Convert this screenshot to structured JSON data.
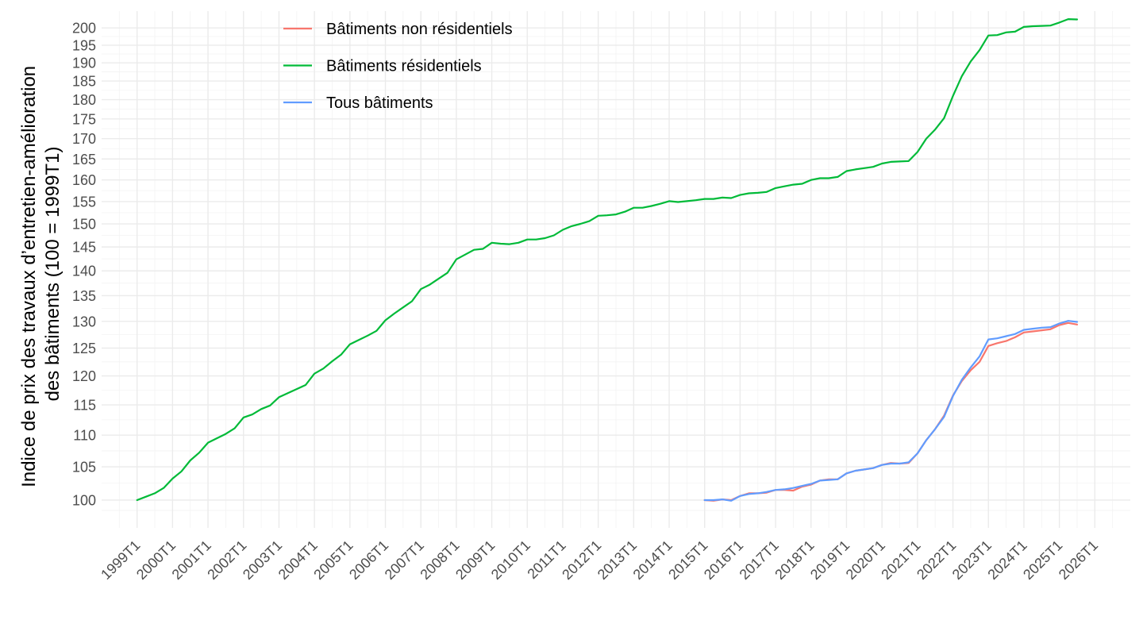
{
  "chart_data": {
    "type": "line",
    "ylabel_lines": [
      "Indice de prix des travaux d’entretien-amélioration",
      "des bâtiments (100 = 1999T1)"
    ],
    "xlabel": "",
    "y_scale": "log",
    "ylim": [
      96,
      205
    ],
    "y_ticks": [
      100,
      105,
      110,
      115,
      120,
      125,
      130,
      135,
      140,
      145,
      150,
      155,
      160,
      165,
      170,
      175,
      180,
      185,
      190,
      195,
      200
    ],
    "x_ticks": [
      "1999T1",
      "2000T1",
      "2001T1",
      "2002T1",
      "2003T1",
      "2004T1",
      "2005T1",
      "2006T1",
      "2007T1",
      "2008T1",
      "2009T1",
      "2010T1",
      "2011T1",
      "2012T1",
      "2013T1",
      "2014T1",
      "2015T1",
      "2016T1",
      "2017T1",
      "2018T1",
      "2019T1",
      "2020T1",
      "2021T1",
      "2022T1",
      "2023T1",
      "2024T1",
      "2025T1",
      "2026T1"
    ],
    "xlim": [
      "1998T1",
      "2027T1"
    ],
    "grid": true,
    "legend_position": "top-left",
    "series": [
      {
        "name": "Bâtiments non résidentiels",
        "color": "#F8766D",
        "start": "2015T1",
        "values": [
          100.0,
          99.9,
          100.1,
          100.0,
          100.6,
          101.0,
          101.0,
          101.1,
          101.5,
          101.5,
          101.4,
          102.0,
          102.3,
          102.9,
          103.1,
          103.1,
          104.0,
          104.4,
          104.6,
          104.8,
          105.3,
          105.6,
          105.5,
          105.6,
          107.1,
          109.2,
          111.0,
          113.2,
          116.6,
          119.1,
          121.0,
          122.5,
          125.4,
          125.9,
          126.3,
          127.0,
          127.9,
          128.1,
          128.3,
          128.5,
          129.3,
          129.7,
          129.4
        ]
      },
      {
        "name": "Bâtiments résidentiels",
        "color": "#00BA38",
        "start": "1999T1",
        "values": [
          100.0,
          100.5,
          101.0,
          101.8,
          103.2,
          104.3,
          106.0,
          107.2,
          108.8,
          109.5,
          110.2,
          111.1,
          112.9,
          113.4,
          114.3,
          114.9,
          116.3,
          117.0,
          117.7,
          118.4,
          120.4,
          121.3,
          122.6,
          123.8,
          125.7,
          126.5,
          127.3,
          128.2,
          130.2,
          131.5,
          132.7,
          133.9,
          136.3,
          137.2,
          138.4,
          139.6,
          142.4,
          143.4,
          144.4,
          144.6,
          145.9,
          145.7,
          145.6,
          145.9,
          146.6,
          146.6,
          146.9,
          147.5,
          148.7,
          149.5,
          150.0,
          150.6,
          151.8,
          151.9,
          152.1,
          152.7,
          153.6,
          153.6,
          154.0,
          154.5,
          155.1,
          154.9,
          155.1,
          155.3,
          155.6,
          155.6,
          155.9,
          155.8,
          156.5,
          156.9,
          157.0,
          157.2,
          158.1,
          158.5,
          158.9,
          159.1,
          160.0,
          160.4,
          160.4,
          160.7,
          162.1,
          162.5,
          162.8,
          163.1,
          163.9,
          164.3,
          164.4,
          164.5,
          166.7,
          170.0,
          172.3,
          175.2,
          181.0,
          186.3,
          190.4,
          193.6,
          197.8,
          197.9,
          198.7,
          198.9,
          200.3,
          200.5,
          200.6,
          200.7,
          201.6,
          202.6,
          202.5
        ]
      },
      {
        "name": "Tous bâtiments",
        "color": "#619CFF",
        "start": "2015T1",
        "values": [
          100.0,
          100.0,
          100.1,
          99.9,
          100.6,
          100.9,
          101.0,
          101.2,
          101.5,
          101.6,
          101.8,
          102.1,
          102.4,
          102.9,
          103.0,
          103.1,
          104.0,
          104.4,
          104.6,
          104.8,
          105.3,
          105.5,
          105.5,
          105.7,
          107.1,
          109.2,
          111.0,
          113.0,
          116.5,
          119.3,
          121.5,
          123.5,
          126.6,
          126.8,
          127.2,
          127.6,
          128.4,
          128.6,
          128.8,
          128.9,
          129.6,
          130.1,
          129.9
        ]
      }
    ]
  }
}
